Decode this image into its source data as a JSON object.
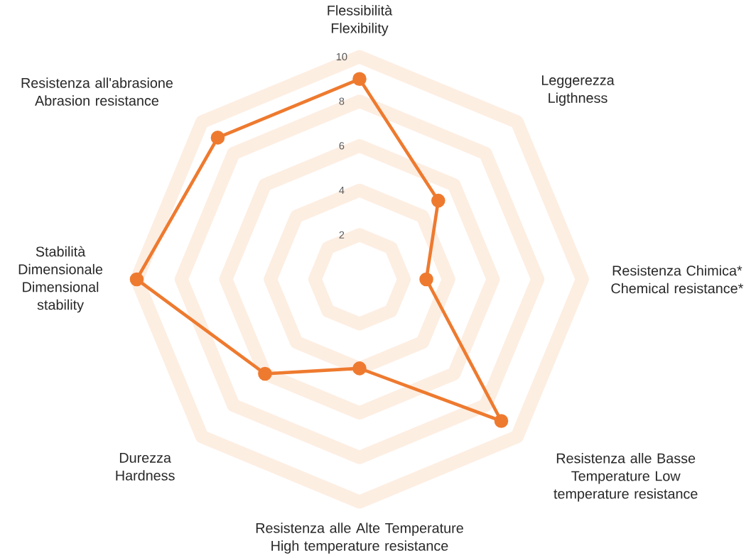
{
  "chart_data": {
    "type": "radar",
    "categories": [
      "Flessibilità Flexibility",
      "Leggerezza Ligthness",
      "Resistenza Chimica* Chemical resistance*",
      "Resistenza alle Basse Temperature Low temperature resistance",
      "Resistenza alle Alte Temperature High temperature resistance",
      "Durezza Hardness",
      "Stabilità Dimensionale Dimensional stability",
      "Resistenza all'abrasione Abrasion resistance"
    ],
    "series": [
      {
        "color": "#ee7a2f",
        "values": [
          9,
          5,
          3,
          9,
          4,
          6,
          10,
          9
        ]
      }
    ],
    "ylim": [
      0,
      10
    ],
    "yticks": [
      2,
      4,
      6,
      8,
      10
    ],
    "grid": true,
    "marker": "circle",
    "line_style": "solid"
  }
}
